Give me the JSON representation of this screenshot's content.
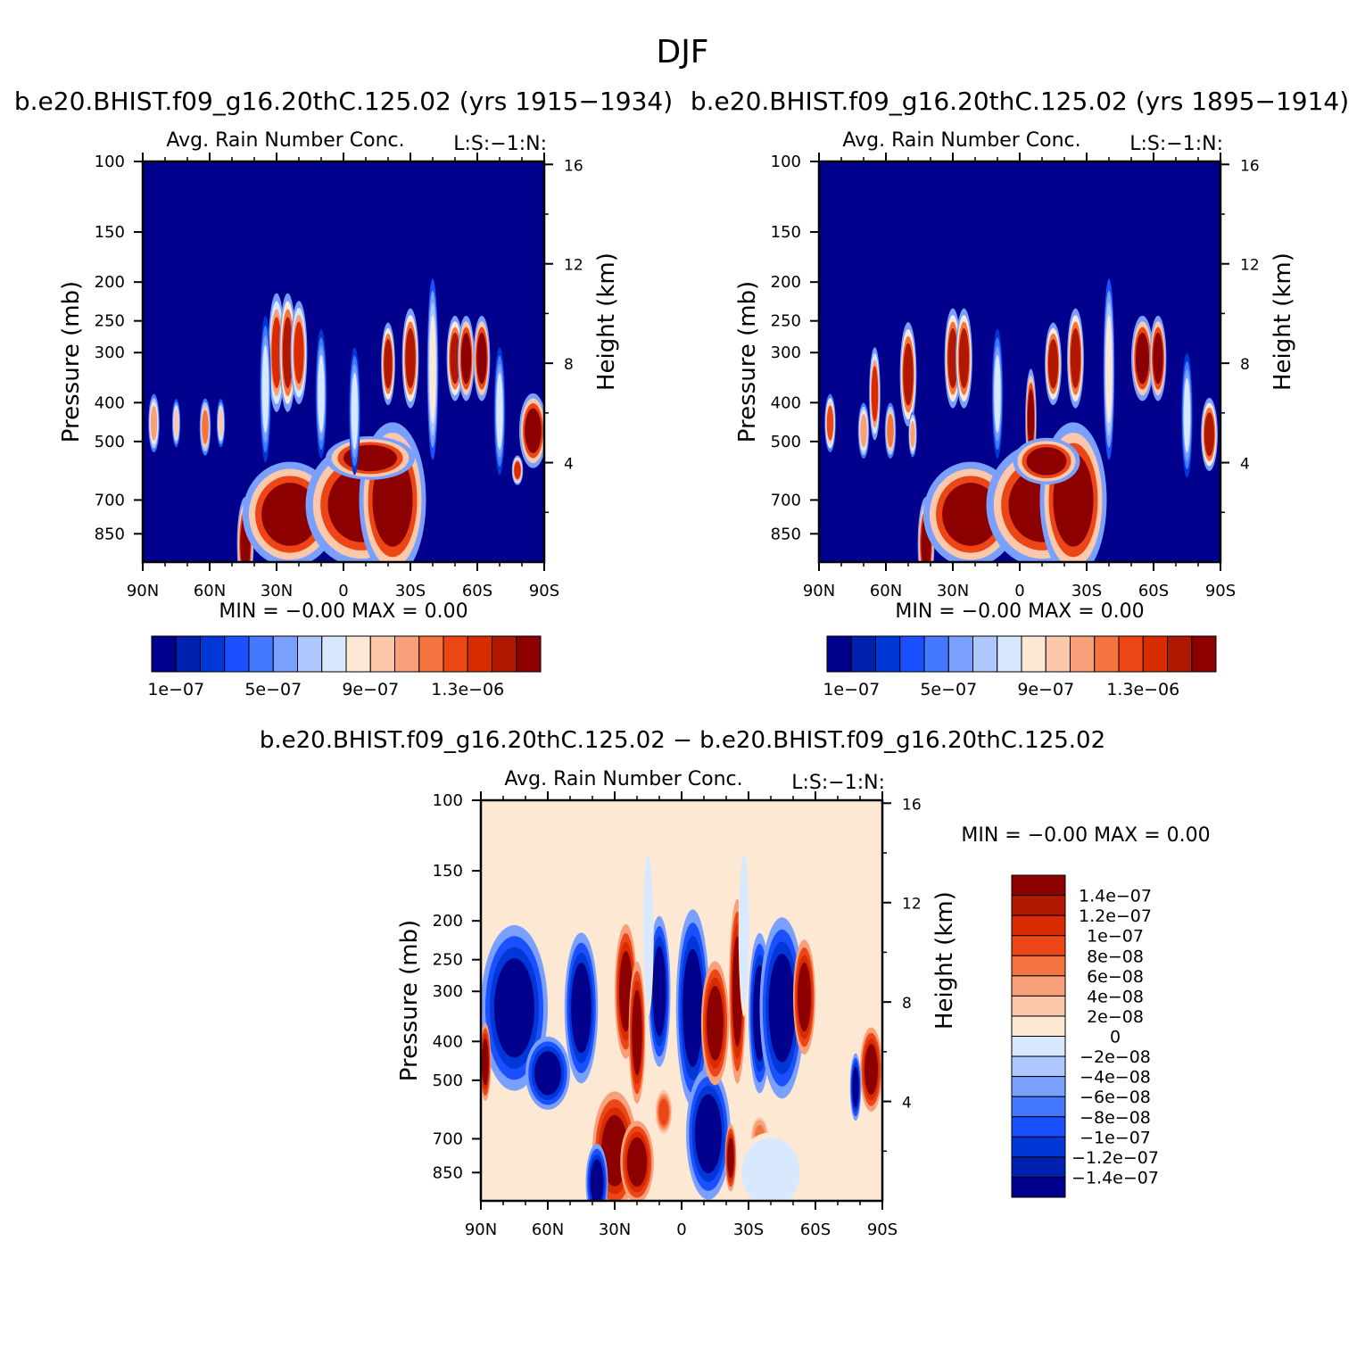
{
  "figure": {
    "title": "DJF",
    "diff_title": "b.e20.BHIST.f09_g16.20thC.125.02 − b.e20.BHIST.f09_g16.20thC.125.02"
  },
  "colors": {
    "abs": [
      "#00008c",
      "#0020b0",
      "#0038d8",
      "#1a50ff",
      "#4478ff",
      "#7aa0ff",
      "#aec8ff",
      "#d8e8ff",
      "#fde8d4",
      "#fcc8ac",
      "#f8a07a",
      "#f47440",
      "#ec4616",
      "#d82c00",
      "#b01800",
      "#8c0000"
    ],
    "diff": [
      "#00008c",
      "#0020b0",
      "#0038d8",
      "#1a50ff",
      "#4478ff",
      "#7aa0ff",
      "#aec8ff",
      "#d8e8ff",
      "#fde8d4",
      "#fcc8ac",
      "#f8a07a",
      "#f47440",
      "#ec4616",
      "#d82c00",
      "#b01800",
      "#8c0000"
    ],
    "abs_background": "#00008c",
    "diff_background": "#fde8d4"
  },
  "chart_data": [
    {
      "type": "heatmap",
      "id": "left",
      "case_title": "b.e20.BHIST.f09_g16.20thC.125.02 (yrs 1915−1934)",
      "plot_title": "Avg. Rain Number Conc.",
      "plot_tag": "L:S:−1:N:",
      "ylabel": "Pressure (mb)",
      "ylabel_right": "Height (km)",
      "x_ticks": [
        "90N",
        "60N",
        "30N",
        "0",
        "30S",
        "60S",
        "90S"
      ],
      "x_range": [
        90,
        -90
      ],
      "y_ticks": [
        100,
        150,
        200,
        250,
        300,
        400,
        500,
        700,
        850
      ],
      "y_range": [
        100,
        1000
      ],
      "y_scale": "log",
      "height_ticks": [
        16,
        12,
        8,
        4
      ],
      "min_label": "MIN =",
      "min_value": "−0.00",
      "max_label": "MAX =",
      "max_value": "0.00",
      "colorbar_labels": [
        "1e−07",
        "5e−07",
        "9e−07",
        "1.3e−06"
      ],
      "features": [
        {
          "lat": 44,
          "p": 900,
          "lat_w": 3,
          "p_w": 250,
          "level": 15
        },
        {
          "lat": 24,
          "p": 760,
          "lat_w": 17,
          "p_w": 180,
          "level": 15
        },
        {
          "lat": -8,
          "p": 720,
          "lat_w": 20,
          "p_w": 200,
          "level": 15
        },
        {
          "lat": -22,
          "p": 700,
          "lat_w": 12,
          "p_w": 240,
          "level": 15
        },
        {
          "lat": -12,
          "p": 550,
          "lat_w": 16,
          "p_w": 55,
          "level": 15
        },
        {
          "lat": 30,
          "p": 300,
          "lat_w": 3,
          "p_w": 80,
          "level": 13
        },
        {
          "lat": 25,
          "p": 300,
          "lat_w": 3,
          "p_w": 80,
          "level": 14
        },
        {
          "lat": 20,
          "p": 300,
          "lat_w": 3,
          "p_w": 70,
          "level": 13
        },
        {
          "lat": -20,
          "p": 320,
          "lat_w": 2.5,
          "p_w": 60,
          "level": 14
        },
        {
          "lat": -30,
          "p": 310,
          "lat_w": 3,
          "p_w": 70,
          "level": 14
        },
        {
          "lat": -50,
          "p": 310,
          "lat_w": 3,
          "p_w": 60,
          "level": 14
        },
        {
          "lat": -55,
          "p": 310,
          "lat_w": 3,
          "p_w": 60,
          "level": 15
        },
        {
          "lat": -62,
          "p": 310,
          "lat_w": 3,
          "p_w": 60,
          "level": 15
        },
        {
          "lat": -85,
          "p": 470,
          "lat_w": 5,
          "p_w": 80,
          "level": 15
        },
        {
          "lat": -78,
          "p": 590,
          "lat_w": 2,
          "p_w": 40,
          "level": 13
        },
        {
          "lat": 85,
          "p": 450,
          "lat_w": 2,
          "p_w": 60,
          "level": 10
        },
        {
          "lat": 75,
          "p": 450,
          "lat_w": 1.5,
          "p_w": 50,
          "level": 9
        },
        {
          "lat": 62,
          "p": 460,
          "lat_w": 2,
          "p_w": 60,
          "level": 11
        },
        {
          "lat": 55,
          "p": 450,
          "lat_w": 1.5,
          "p_w": 50,
          "level": 9
        },
        {
          "lat": 35,
          "p": 370,
          "lat_w": 2,
          "p_w": 120,
          "level": 7
        },
        {
          "lat": 10,
          "p": 380,
          "lat_w": 2,
          "p_w": 110,
          "level": 7
        },
        {
          "lat": -5,
          "p": 420,
          "lat_w": 2,
          "p_w": 120,
          "level": 7
        },
        {
          "lat": -40,
          "p": 330,
          "lat_w": 2,
          "p_w": 130,
          "level": 8
        },
        {
          "lat": -70,
          "p": 420,
          "lat_w": 2,
          "p_w": 120,
          "level": 7
        }
      ]
    },
    {
      "type": "heatmap",
      "id": "right",
      "case_title": "b.e20.BHIST.f09_g16.20thC.125.02 (yrs 1895−1914)",
      "plot_title": "Avg. Rain Number Conc.",
      "plot_tag": "L:S:−1:N:",
      "ylabel": "Pressure (mb)",
      "ylabel_right": "Height (km)",
      "x_ticks": [
        "90N",
        "60N",
        "30N",
        "0",
        "30S",
        "60S",
        "90S"
      ],
      "x_range": [
        90,
        -90
      ],
      "y_ticks": [
        100,
        150,
        200,
        250,
        300,
        400,
        500,
        700,
        850
      ],
      "y_range": [
        100,
        1000
      ],
      "y_scale": "log",
      "height_ticks": [
        16,
        12,
        8,
        4
      ],
      "min_label": "MIN =",
      "min_value": "−0.00",
      "max_label": "MAX =",
      "max_value": "0.00",
      "colorbar_labels": [
        "1e−07",
        "5e−07",
        "9e−07",
        "1.3e−06"
      ],
      "features": [
        {
          "lat": 42,
          "p": 900,
          "lat_w": 3,
          "p_w": 250,
          "level": 15
        },
        {
          "lat": 22,
          "p": 760,
          "lat_w": 17,
          "p_w": 180,
          "level": 15
        },
        {
          "lat": -10,
          "p": 720,
          "lat_w": 20,
          "p_w": 200,
          "level": 15
        },
        {
          "lat": -24,
          "p": 700,
          "lat_w": 12,
          "p_w": 240,
          "level": 15
        },
        {
          "lat": -5,
          "p": 440,
          "lat_w": 2,
          "p_w": 100,
          "level": 15
        },
        {
          "lat": -12,
          "p": 560,
          "lat_w": 12,
          "p_w": 60,
          "level": 15
        },
        {
          "lat": 65,
          "p": 380,
          "lat_w": 2,
          "p_w": 80,
          "level": 13
        },
        {
          "lat": 50,
          "p": 340,
          "lat_w": 3,
          "p_w": 80,
          "level": 14
        },
        {
          "lat": 30,
          "p": 310,
          "lat_w": 3,
          "p_w": 70,
          "level": 14
        },
        {
          "lat": 25,
          "p": 310,
          "lat_w": 3,
          "p_w": 70,
          "level": 14
        },
        {
          "lat": -15,
          "p": 320,
          "lat_w": 3,
          "p_w": 60,
          "level": 14
        },
        {
          "lat": -25,
          "p": 310,
          "lat_w": 3,
          "p_w": 70,
          "level": 14
        },
        {
          "lat": -55,
          "p": 310,
          "lat_w": 4,
          "p_w": 60,
          "level": 15
        },
        {
          "lat": -62,
          "p": 310,
          "lat_w": 3,
          "p_w": 60,
          "level": 15
        },
        {
          "lat": -85,
          "p": 480,
          "lat_w": 3,
          "p_w": 80,
          "level": 14
        },
        {
          "lat": 85,
          "p": 450,
          "lat_w": 2,
          "p_w": 60,
          "level": 12
        },
        {
          "lat": 70,
          "p": 470,
          "lat_w": 2,
          "p_w": 60,
          "level": 10
        },
        {
          "lat": 58,
          "p": 470,
          "lat_w": 2,
          "p_w": 60,
          "level": 11
        },
        {
          "lat": 48,
          "p": 480,
          "lat_w": 1.5,
          "p_w": 50,
          "level": 10
        },
        {
          "lat": 10,
          "p": 380,
          "lat_w": 2,
          "p_w": 110,
          "level": 7
        },
        {
          "lat": -40,
          "p": 330,
          "lat_w": 2,
          "p_w": 130,
          "level": 8
        },
        {
          "lat": -75,
          "p": 430,
          "lat_w": 2,
          "p_w": 120,
          "level": 7
        }
      ]
    },
    {
      "type": "heatmap",
      "id": "diff",
      "plot_title": "Avg. Rain Number Conc.",
      "plot_tag": "L:S:−1:N:",
      "ylabel": "Pressure (mb)",
      "ylabel_right": "Height (km)",
      "x_ticks": [
        "90N",
        "60N",
        "30N",
        "0",
        "30S",
        "60S",
        "90S"
      ],
      "x_range": [
        90,
        -90
      ],
      "y_ticks": [
        100,
        150,
        200,
        250,
        300,
        400,
        500,
        700,
        850
      ],
      "y_range": [
        100,
        1000
      ],
      "y_scale": "log",
      "height_ticks": [
        16,
        12,
        8,
        4
      ],
      "min_label": "MIN =",
      "min_value": "−0.00",
      "max_label": "MAX =",
      "max_value": "0.00",
      "colorbar_labels": [
        "1.4e−07",
        "1.2e−07",
        "1e−07",
        "8e−08",
        "6e−08",
        "4e−08",
        "2e−08",
        "0",
        "−2e−08",
        "−4e−08",
        "−6e−08",
        "−8e−08",
        "−1e−07",
        "−1.2e−07",
        "−1.4e−07"
      ],
      "features": [
        {
          "lat": 75,
          "p": 330,
          "lat_w": 12,
          "p_w": 120,
          "level": 0
        },
        {
          "lat": 60,
          "p": 480,
          "lat_w": 8,
          "p_w": 80,
          "level": 0
        },
        {
          "lat": 45,
          "p": 330,
          "lat_w": 6,
          "p_w": 110,
          "level": 0
        },
        {
          "lat": 25,
          "p": 300,
          "lat_w": 4,
          "p_w": 90,
          "level": 15
        },
        {
          "lat": 20,
          "p": 380,
          "lat_w": 3,
          "p_w": 120,
          "level": 15
        },
        {
          "lat": 10,
          "p": 300,
          "lat_w": 4,
          "p_w": 100,
          "level": 0
        },
        {
          "lat": -5,
          "p": 330,
          "lat_w": 6,
          "p_w": 140,
          "level": 0
        },
        {
          "lat": -12,
          "p": 680,
          "lat_w": 8,
          "p_w": 200,
          "level": 0
        },
        {
          "lat": -15,
          "p": 360,
          "lat_w": 5,
          "p_w": 100,
          "level": 15
        },
        {
          "lat": -25,
          "p": 300,
          "lat_w": 3,
          "p_w": 120,
          "level": 15
        },
        {
          "lat": -35,
          "p": 340,
          "lat_w": 4,
          "p_w": 120,
          "level": 0
        },
        {
          "lat": -45,
          "p": 330,
          "lat_w": 8,
          "p_w": 130,
          "level": 0
        },
        {
          "lat": -55,
          "p": 310,
          "lat_w": 4,
          "p_w": 80,
          "level": 15
        },
        {
          "lat": -85,
          "p": 470,
          "lat_w": 4,
          "p_w": 90,
          "level": 15
        },
        {
          "lat": -78,
          "p": 520,
          "lat_w": 2,
          "p_w": 80,
          "level": 0
        },
        {
          "lat": 88,
          "p": 450,
          "lat_w": 2,
          "p_w": 80,
          "level": 15
        },
        {
          "lat": 30,
          "p": 750,
          "lat_w": 8,
          "p_w": 200,
          "level": 15
        },
        {
          "lat": 20,
          "p": 800,
          "lat_w": 6,
          "p_w": 150,
          "level": 15
        },
        {
          "lat": 8,
          "p": 600,
          "lat_w": 3,
          "p_w": 60,
          "level": 12
        },
        {
          "lat": -35,
          "p": 690,
          "lat_w": 3,
          "p_w": 60,
          "level": 11
        },
        {
          "lat": -22,
          "p": 780,
          "lat_w": 2,
          "p_w": 120,
          "level": 15
        },
        {
          "lat": 38,
          "p": 900,
          "lat_w": 4,
          "p_w": 200,
          "level": 0
        },
        {
          "lat": -40,
          "p": 850,
          "lat_w": 12,
          "p_w": 160,
          "level": 7
        },
        {
          "lat": 15,
          "p": 210,
          "lat_w": 2,
          "p_w": 80,
          "level": 7
        },
        {
          "lat": -28,
          "p": 210,
          "lat_w": 2,
          "p_w": 80,
          "level": 7
        }
      ]
    }
  ]
}
